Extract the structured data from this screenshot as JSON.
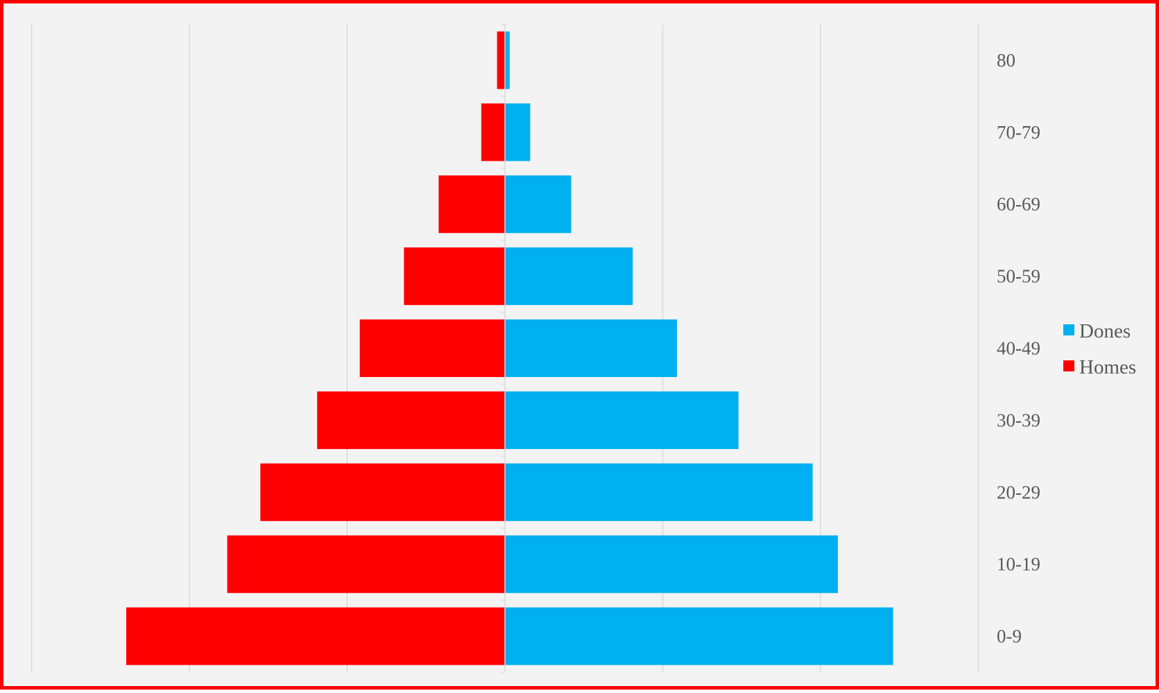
{
  "chart_data": {
    "type": "bar",
    "orientation": "horizontal",
    "layout": "population-pyramid",
    "title": "",
    "xlabel": "",
    "ylabel": "",
    "categories": [
      "0-9",
      "10-19",
      "20-29",
      "30-39",
      "40-49",
      "50-59",
      "60-69",
      "70-79",
      "80"
    ],
    "xlim": [
      -15,
      15
    ],
    "grid": true,
    "legend_position": "right",
    "series": [
      {
        "name": "Dones",
        "side": "right",
        "color": "#00b0f0",
        "values": [
          12.3,
          10.55,
          9.75,
          7.4,
          5.45,
          4.05,
          2.1,
          0.8,
          0.15
        ]
      },
      {
        "name": "Homes",
        "side": "left",
        "color": "#ff0000",
        "values": [
          12.0,
          8.8,
          7.75,
          5.95,
          4.6,
          3.2,
          2.1,
          0.75,
          0.25
        ]
      }
    ]
  }
}
